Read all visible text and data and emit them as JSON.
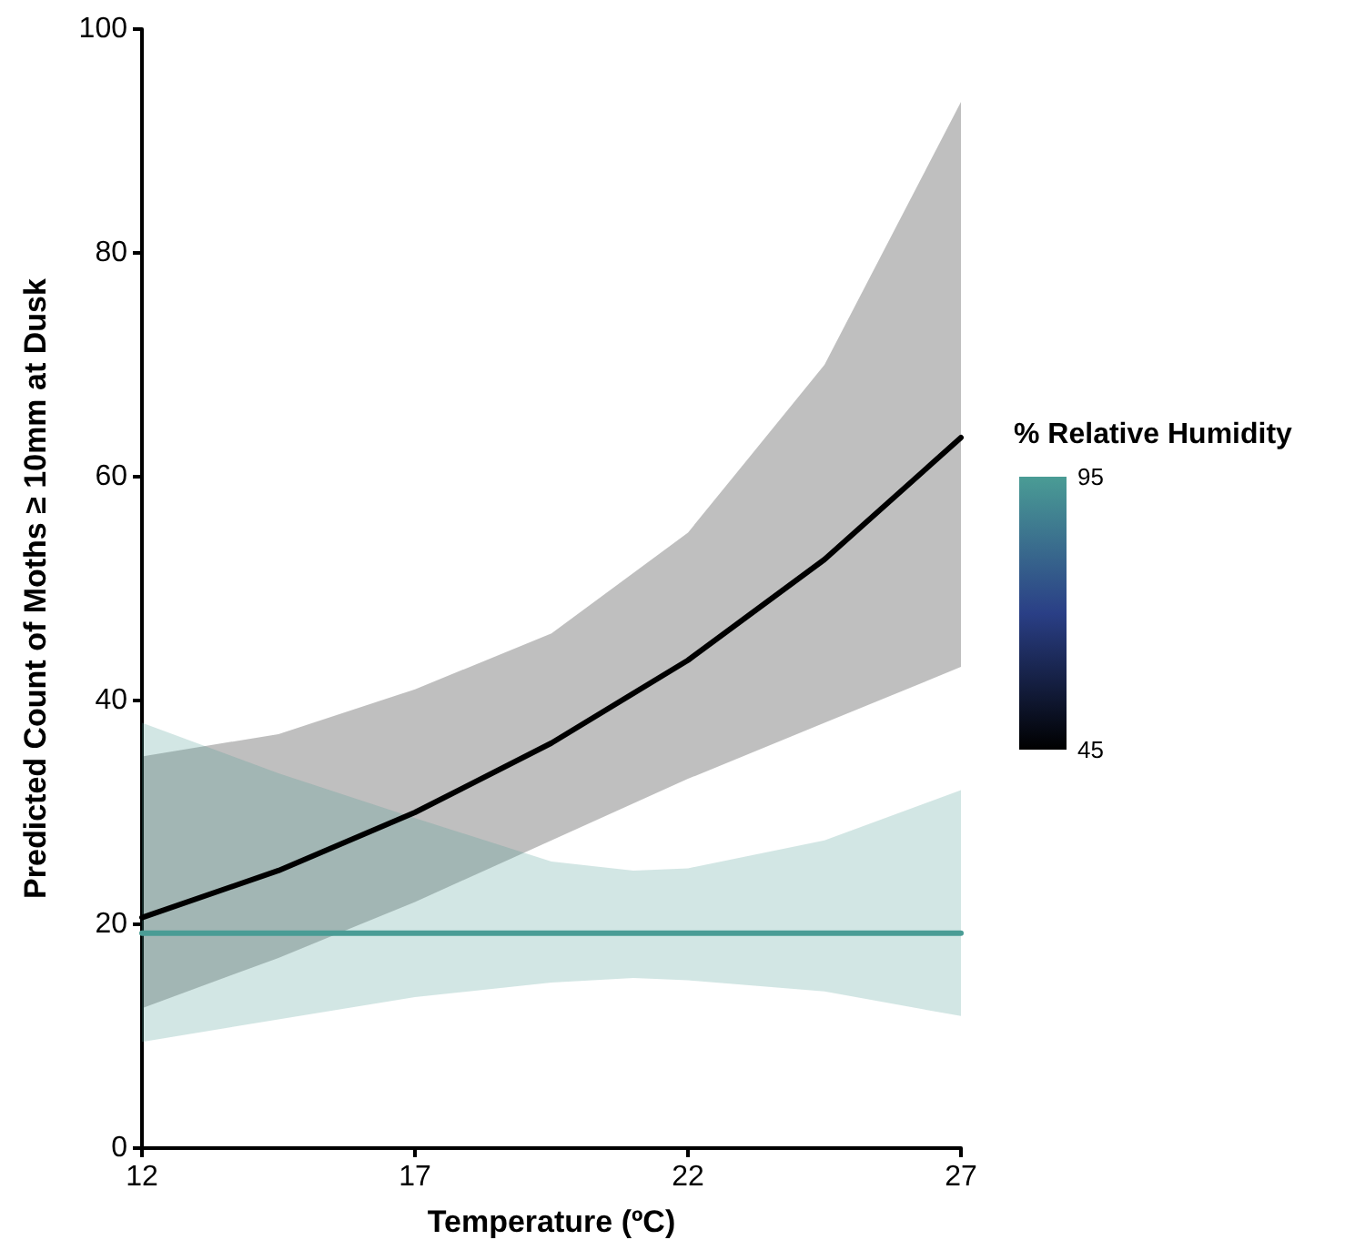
{
  "chart_data": {
    "type": "line",
    "xlabel": "Temperature (ºC)",
    "ylabel": "Predicted Count of Moths ≥ 10mm at Dusk",
    "clabel": "% Relative Humidity",
    "clim": [
      45,
      95
    ],
    "cticks": [
      45,
      95
    ],
    "xlim": [
      12,
      27
    ],
    "xticks": [
      12,
      17,
      22,
      27
    ],
    "ylim": [
      0,
      100
    ],
    "yticks": [
      0,
      20,
      40,
      60,
      80,
      100
    ],
    "grid": false,
    "marker": "none",
    "line_style": "solid",
    "series": [
      {
        "color": "#000000",
        "x": [
          12,
          14.5,
          17,
          19.5,
          22,
          24.5,
          27
        ],
        "values": [
          20.6,
          24.8,
          30,
          36.2,
          43.6,
          52.6,
          63.5
        ],
        "lower": [
          12.5,
          17,
          22,
          27.5,
          33,
          38,
          43
        ],
        "upper": [
          35,
          37,
          41,
          46,
          55,
          70,
          93.5
        ]
      },
      {
        "color": "#4a9c95",
        "x": [
          12,
          14.5,
          17,
          19.5,
          21,
          22,
          24.5,
          27
        ],
        "values": [
          19.2,
          19.2,
          19.2,
          19.2,
          19.2,
          19.2,
          19.2,
          19.2
        ],
        "lower": [
          9.5,
          11.5,
          13.5,
          14.8,
          15.2,
          15,
          14,
          11.8
        ],
        "upper": [
          38,
          33.5,
          29.5,
          25.6,
          24.8,
          25,
          27.5,
          32
        ]
      }
    ]
  }
}
